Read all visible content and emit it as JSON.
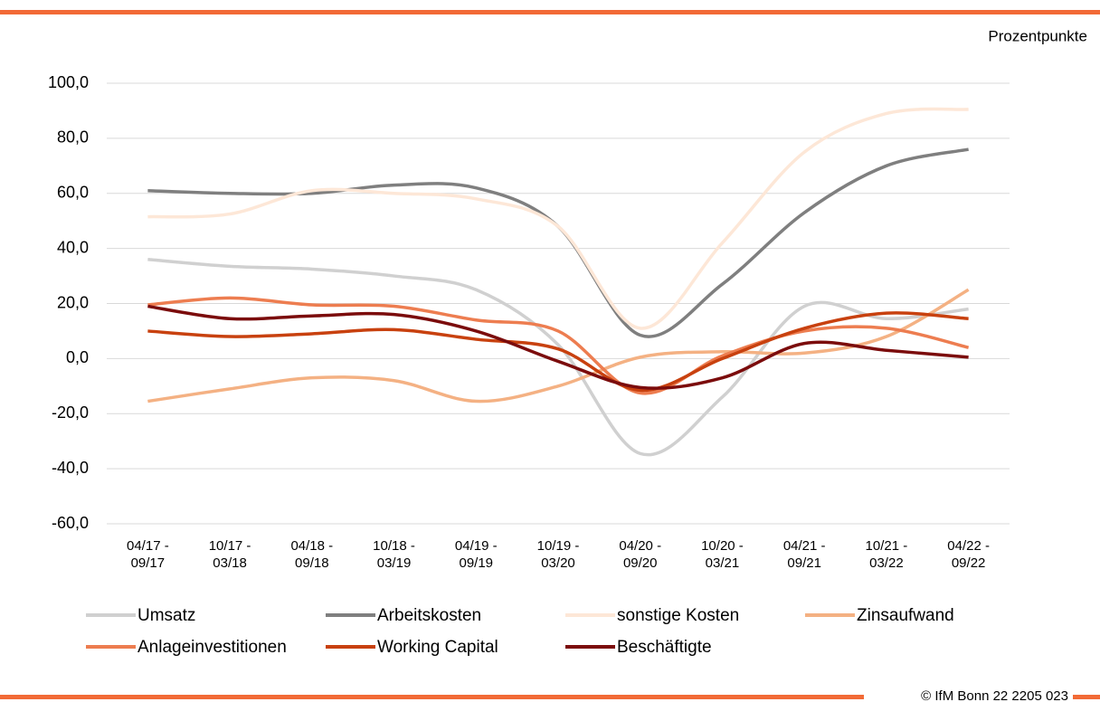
{
  "chart_data": {
    "type": "line",
    "y_unit": "Prozentpunkte",
    "categories": [
      "04/17 - 09/17",
      "10/17 - 03/18",
      "04/18 - 09/18",
      "10/18 - 03/19",
      "04/19 - 09/19",
      "10/19 - 03/20",
      "04/20 - 09/20",
      "10/20 - 03/21",
      "04/21 - 09/21",
      "10/21 - 03/22",
      "04/22 - 09/22"
    ],
    "series": [
      {
        "name": "Umsatz",
        "color": "#d0d0d0",
        "values": [
          36,
          33.5,
          32.5,
          30,
          25,
          5,
          -34.5,
          -14,
          19,
          14.5,
          18
        ]
      },
      {
        "name": "Arbeitskosten",
        "color": "#7f7f7f",
        "values": [
          61,
          60,
          60,
          63,
          62,
          48,
          8.5,
          27,
          53,
          70,
          76
        ]
      },
      {
        "name": "sonstige Kosten",
        "color": "#fde7d7",
        "values": [
          51.5,
          52.5,
          61,
          60,
          58,
          48,
          11,
          42,
          75,
          89,
          90.5
        ]
      },
      {
        "name": "Zinsaufwand",
        "color": "#f4b183",
        "values": [
          -15.5,
          -11,
          -7,
          -8,
          -15.5,
          -10,
          0.5,
          2.5,
          2,
          8,
          25
        ]
      },
      {
        "name": "Anlageinvestitionen",
        "color": "#ed7d50",
        "values": [
          19.5,
          22,
          19.5,
          19,
          14,
          10,
          -12.5,
          1,
          10,
          11,
          4
        ]
      },
      {
        "name": "Working Capital",
        "color": "#c8410f",
        "values": [
          10,
          8,
          9,
          10.5,
          7,
          3.5,
          -11.5,
          0,
          11,
          16.5,
          14.5
        ]
      },
      {
        "name": "Beschäftigte",
        "color": "#7b0c0c",
        "values": [
          19,
          14.5,
          15.5,
          16,
          10,
          -1,
          -10.5,
          -7,
          5.5,
          3,
          0.5
        ]
      }
    ],
    "ylim": [
      -60,
      100
    ],
    "yticks": [
      {
        "value": -60,
        "label": "-60,0"
      },
      {
        "value": -40,
        "label": "-40,0"
      },
      {
        "value": -20,
        "label": "-20,0"
      },
      {
        "value": 0,
        "label": "0,0"
      },
      {
        "value": 20,
        "label": "20,0"
      },
      {
        "value": 40,
        "label": "40,0"
      },
      {
        "value": 60,
        "label": "60,0"
      },
      {
        "value": 80,
        "label": "80,0"
      },
      {
        "value": 100,
        "label": "100,0"
      }
    ],
    "grid": true,
    "footer": "© IfM Bonn 22 2205 023"
  }
}
